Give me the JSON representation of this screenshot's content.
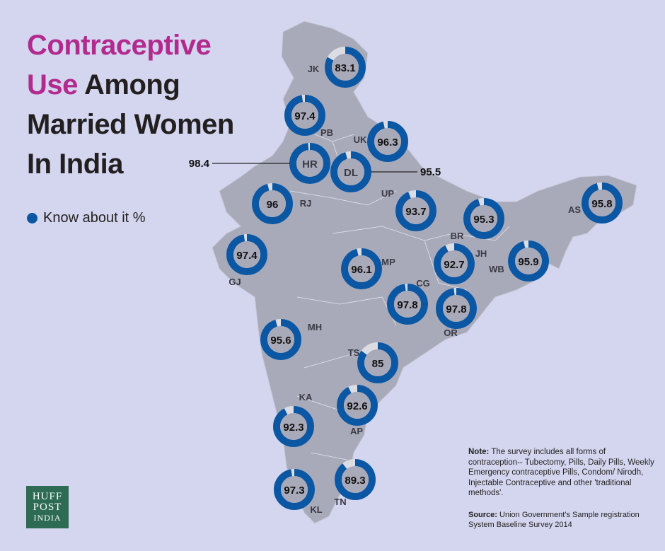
{
  "title": {
    "highlight_1": "Contraceptive",
    "highlight_2": "Use",
    "rest_1": " Among",
    "line_3": "Married Women",
    "line_4": "In India"
  },
  "legend": {
    "label": "Know about it %",
    "color": "#0b57a4"
  },
  "colors": {
    "background": "#d3d6ee",
    "map": "#a9aab9",
    "ring": "#0b57a4",
    "remainder": "#dcdde4",
    "center": "#a9aab9",
    "title_accent": "#b22a8e"
  },
  "states": [
    {
      "code": "JK",
      "value": 83.1
    },
    {
      "code": "PB",
      "value": 97.4
    },
    {
      "code": "UK",
      "value": 96.3
    },
    {
      "code": "HR",
      "value": 98.4,
      "callout": "98.4"
    },
    {
      "code": "DL",
      "value": 95.5,
      "callout": "95.5"
    },
    {
      "code": "RJ",
      "value": 96
    },
    {
      "code": "UP",
      "value": 93.7
    },
    {
      "code": "BR",
      "value": 95.3
    },
    {
      "code": "AS",
      "value": 95.8
    },
    {
      "code": "GJ",
      "value": 97.4
    },
    {
      "code": "MP",
      "value": 96.1
    },
    {
      "code": "JH",
      "value": 92.7
    },
    {
      "code": "WB",
      "value": 95.9
    },
    {
      "code": "CG",
      "value": 97.8
    },
    {
      "code": "OR",
      "value": 97.8
    },
    {
      "code": "MH",
      "value": 95.6
    },
    {
      "code": "TS",
      "value": 85
    },
    {
      "code": "KA",
      "value": 92.3
    },
    {
      "code": "AP",
      "value": 92.6
    },
    {
      "code": "KL",
      "value": 97.3
    },
    {
      "code": "TN",
      "value": 89.3
    }
  ],
  "note": {
    "label": "Note:",
    "text": " The survey includes all forms of contraception-- Tubectomy, Pills, Daily Pills, Weekly Emergency contraceptive Pills, Condom/ Nirodh, Injectable Contraceptive and other 'traditional methods'."
  },
  "source": {
    "label": "Source:",
    "text": " Union Government's Sample registration System Baseline Survey 2014"
  },
  "logo": {
    "line1": "HUFF",
    "line2": "POST",
    "line3": "INDIA"
  }
}
